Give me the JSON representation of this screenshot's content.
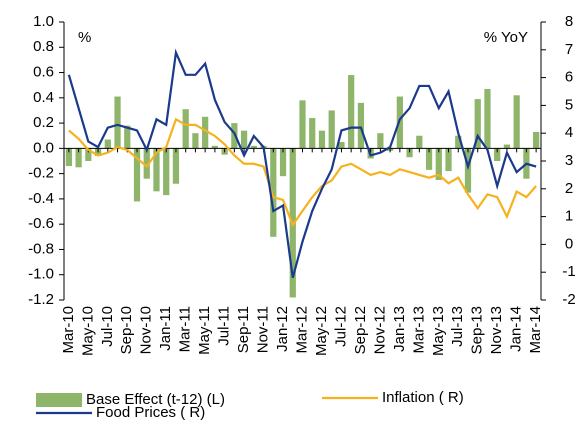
{
  "chart_data": {
    "type": "bar",
    "y_annotation": "%",
    "y2_annotation": "% YoY",
    "categories": [
      "Mar-10",
      null,
      "May-10",
      null,
      "Jul-10",
      null,
      "Sep-10",
      null,
      "Nov-10",
      null,
      "Jan-11",
      null,
      "Mar-11",
      null,
      "May-11",
      null,
      "Jul-11",
      null,
      "Sep-11",
      null,
      "Nov-11",
      null,
      "Jan-12",
      null,
      "Mar-12",
      null,
      "May-12",
      null,
      "Jul-12",
      null,
      "Sep-12",
      null,
      "Nov-12",
      null,
      "Jan-13",
      null,
      "Mar-13",
      null,
      "May-13",
      null,
      "Jul-13",
      null,
      "Sep-13",
      null,
      "Nov-13",
      null,
      "Jan-14",
      null,
      "Mar-14"
    ],
    "series": [
      {
        "name": "Base Effect (t-12) (L)",
        "type": "bar",
        "color": "#8fb56b",
        "axis": "y",
        "values": [
          -0.14,
          -0.15,
          -0.1,
          -0.06,
          0.07,
          0.41,
          0.18,
          -0.42,
          -0.24,
          -0.34,
          -0.37,
          -0.28,
          0.31,
          0.12,
          0.25,
          0.02,
          -0.05,
          0.2,
          0.14,
          0.02,
          0.02,
          -0.7,
          -0.22,
          -1.18,
          0.38,
          0.24,
          0.14,
          0.3,
          0.05,
          0.58,
          0.36,
          -0.08,
          0.12,
          -0.02,
          0.41,
          -0.07,
          0.1,
          -0.17,
          -0.25,
          -0.18,
          0.1,
          -0.35,
          0.39,
          0.47,
          -0.1,
          0.03,
          0.42,
          -0.24,
          0.13
        ]
      },
      {
        "name": "Inflation ( R)",
        "type": "line",
        "color": "#f5b21f",
        "axis": "y2",
        "values": [
          4.1,
          3.8,
          3.4,
          3.2,
          3.3,
          3.5,
          3.4,
          3.1,
          2.8,
          3.3,
          3.5,
          4.5,
          4.3,
          4.3,
          4.1,
          3.9,
          3.6,
          3.2,
          2.9,
          2.9,
          2.8,
          1.7,
          1.6,
          0.7,
          1.2,
          1.7,
          2.1,
          2.3,
          2.8,
          2.9,
          2.7,
          2.5,
          2.6,
          2.5,
          2.7,
          2.6,
          2.5,
          2.4,
          2.5,
          2.2,
          2.4,
          1.8,
          1.3,
          1.8,
          1.7,
          1.0,
          1.9,
          1.7,
          2.1
        ]
      },
      {
        "name": "Food Prices ( R)",
        "type": "line",
        "color": "#1b3a8c",
        "axis": "y2",
        "values": [
          6.1,
          4.9,
          3.7,
          3.5,
          4.2,
          4.3,
          4.2,
          4.1,
          3.4,
          4.5,
          4.3,
          6.9,
          6.1,
          6.1,
          6.5,
          5.2,
          4.4,
          4.0,
          3.2,
          3.9,
          3.5,
          1.2,
          1.4,
          -1.2,
          0.1,
          1.2,
          2.0,
          2.7,
          4.1,
          4.2,
          4.2,
          3.2,
          3.3,
          3.5,
          4.5,
          4.9,
          5.7,
          5.7,
          4.9,
          5.5,
          4.0,
          2.8,
          3.9,
          3.4,
          2.1,
          3.3,
          2.6,
          2.9,
          2.8
        ]
      }
    ],
    "ylim": [
      -1.2,
      1.0
    ],
    "yticks": [
      {
        "value": 1.0,
        "label": "1.0"
      },
      0.8,
      0.6,
      0.4,
      0.2,
      {
        "value": 0.0,
        "label": "0.0"
      },
      -0.2,
      -0.4,
      -0.6,
      -0.8,
      {
        "value": -1.0,
        "label": "-1.0"
      },
      -1.2
    ],
    "y2lim": [
      -2,
      8
    ],
    "y2ticks": [
      -2,
      -1,
      0,
      1,
      2,
      3,
      4,
      5,
      6,
      7,
      8
    ],
    "grid": false
  }
}
